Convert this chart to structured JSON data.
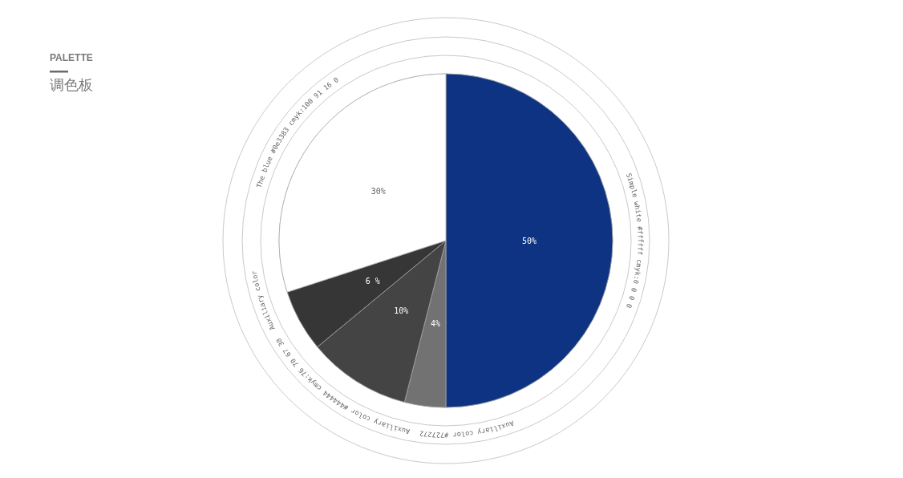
{
  "chart_data": {
    "type": "pie",
    "title": "PALETTE",
    "subtitle": "调色板",
    "categories": [
      "Simple white #ffffff cmyk:0 0 0 0",
      "Auxiliary color #727272",
      "Auxiliary color #444444 cmyk:76 70 67 30",
      "Auxiliary color",
      "The blue #0e3383 cmyk:100 91 16 0"
    ],
    "values": [
      50,
      4,
      10,
      6,
      30
    ],
    "colors": [
      "#0e3383",
      "#727272",
      "#444444",
      "#363636",
      "#ffffff"
    ],
    "value_labels": [
      "50%",
      "4%",
      "10%",
      "6 %",
      "30%"
    ]
  }
}
